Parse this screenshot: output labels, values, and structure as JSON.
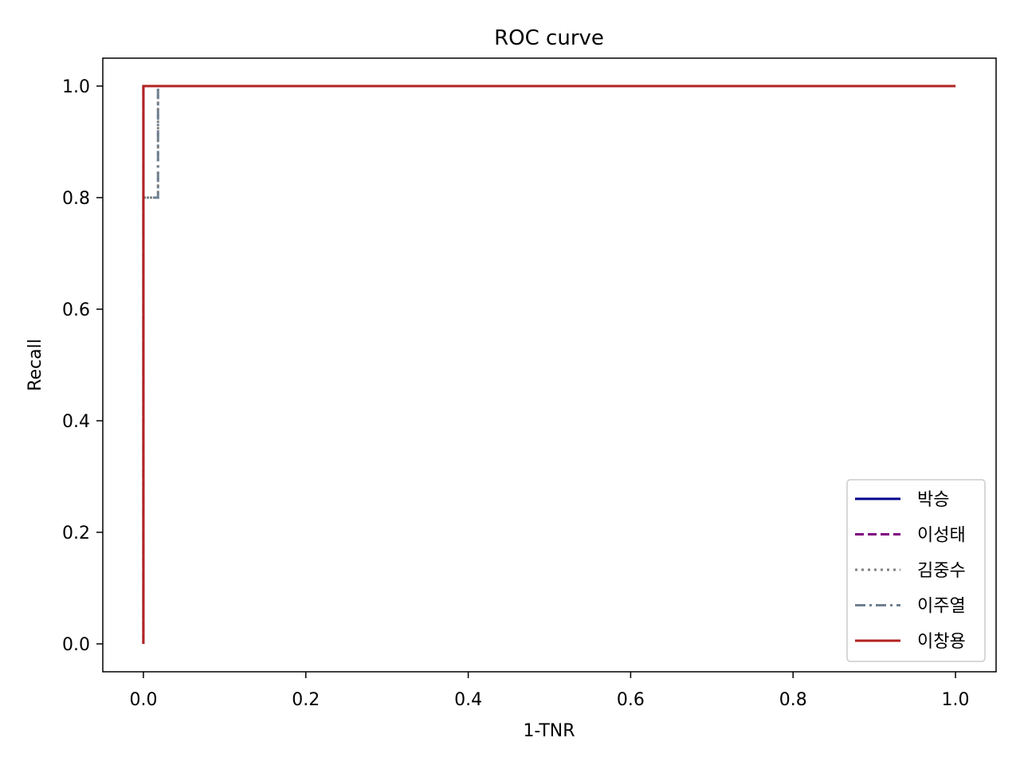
{
  "chart_data": {
    "type": "line",
    "title": "ROC curve",
    "xlabel": "1-TNR",
    "ylabel": "Recall",
    "xlim": [
      -0.05,
      1.05
    ],
    "ylim": [
      -0.05,
      1.05
    ],
    "xticks": [
      "0.0",
      "0.2",
      "0.4",
      "0.6",
      "0.8",
      "1.0"
    ],
    "yticks": [
      "0.0",
      "0.2",
      "0.4",
      "0.6",
      "0.8",
      "1.0"
    ],
    "grid": false,
    "legend_position": "lower-right",
    "series": [
      {
        "name": "박승",
        "color": "#00008b",
        "dash": "solid",
        "x": [
          0.0,
          0.0,
          1.0
        ],
        "y": [
          0.0,
          1.0,
          1.0
        ]
      },
      {
        "name": "이성태",
        "color": "#800080",
        "dash": "dashed",
        "x": [
          0.0,
          0.0,
          1.0
        ],
        "y": [
          0.0,
          1.0,
          1.0
        ]
      },
      {
        "name": "김중수",
        "color": "#808080",
        "dash": "dotted",
        "x": [
          0.0,
          0.0,
          0.018,
          0.018,
          1.0
        ],
        "y": [
          0.0,
          0.8,
          0.8,
          1.0,
          1.0
        ]
      },
      {
        "name": "이주열",
        "color": "#708090",
        "dash": "dashdot",
        "x": [
          0.0,
          0.0,
          0.018,
          0.018,
          1.0
        ],
        "y": [
          0.0,
          0.8,
          0.8,
          1.0,
          1.0
        ]
      },
      {
        "name": "이창용",
        "color": "#b22222",
        "dash": "solid",
        "x": [
          0.0,
          0.0,
          1.0
        ],
        "y": [
          0.0,
          1.0,
          1.0
        ]
      }
    ]
  }
}
